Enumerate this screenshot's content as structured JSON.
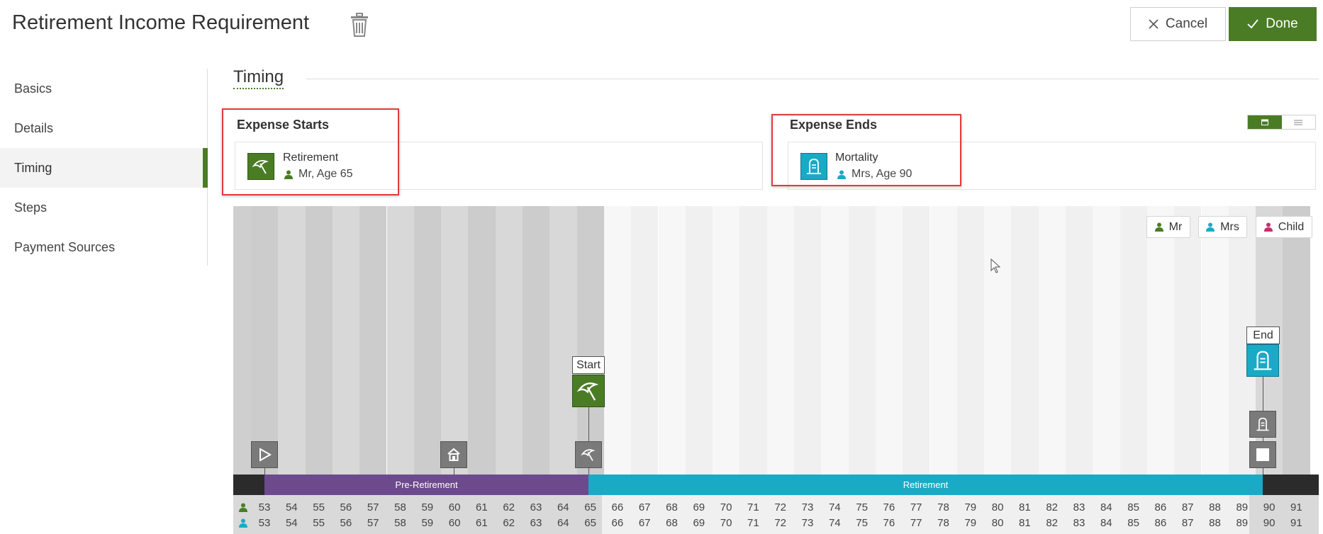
{
  "header": {
    "title": "Retirement Income Requirement",
    "cancel_label": "Cancel",
    "done_label": "Done"
  },
  "sidebar": {
    "items": [
      {
        "label": "Basics"
      },
      {
        "label": "Details"
      },
      {
        "label": "Timing",
        "active": true
      },
      {
        "label": "Steps"
      },
      {
        "label": "Payment Sources"
      }
    ]
  },
  "section": {
    "title": "Timing"
  },
  "expense_starts": {
    "label": "Expense Starts",
    "event": "Retirement",
    "person": "Mr, Age 65",
    "icon": "umbrella-icon",
    "color": "#4a7c25"
  },
  "expense_ends": {
    "label": "Expense Ends",
    "event": "Mortality",
    "person": "Mrs, Age 90",
    "icon": "tombstone-icon",
    "color": "#1aaac6"
  },
  "legend": [
    {
      "label": "Mr",
      "color": "#4a7c25"
    },
    {
      "label": "Mrs",
      "color": "#1aaac6"
    },
    {
      "label": "Child",
      "color": "#c2306e"
    }
  ],
  "timeline": {
    "start_tag": "Start",
    "end_tag": "End",
    "phases": [
      {
        "label": "Pre-Retirement",
        "color": "#6d4a8c"
      },
      {
        "label": "Retirement",
        "color": "#1aaac6"
      }
    ],
    "ages_mr": [
      "53",
      "54",
      "55",
      "56",
      "57",
      "58",
      "59",
      "60",
      "61",
      "62",
      "63",
      "64",
      "65",
      "66",
      "67",
      "68",
      "69",
      "70",
      "71",
      "72",
      "73",
      "74",
      "75",
      "76",
      "77",
      "78",
      "79",
      "80",
      "81",
      "82",
      "83",
      "84",
      "85",
      "86",
      "87",
      "88",
      "89",
      "90",
      "91"
    ],
    "ages_mrs": [
      "53",
      "54",
      "55",
      "56",
      "57",
      "58",
      "59",
      "60",
      "61",
      "62",
      "63",
      "64",
      "65",
      "66",
      "67",
      "68",
      "69",
      "70",
      "71",
      "72",
      "73",
      "74",
      "75",
      "76",
      "77",
      "78",
      "79",
      "80",
      "81",
      "82",
      "83",
      "84",
      "85",
      "86",
      "87",
      "88",
      "89",
      "90",
      "91"
    ]
  },
  "colors": {
    "accent_green": "#4a7c25",
    "teal": "#1aaac6",
    "purple": "#6d4a8c",
    "highlight_red": "#e23b3b"
  }
}
